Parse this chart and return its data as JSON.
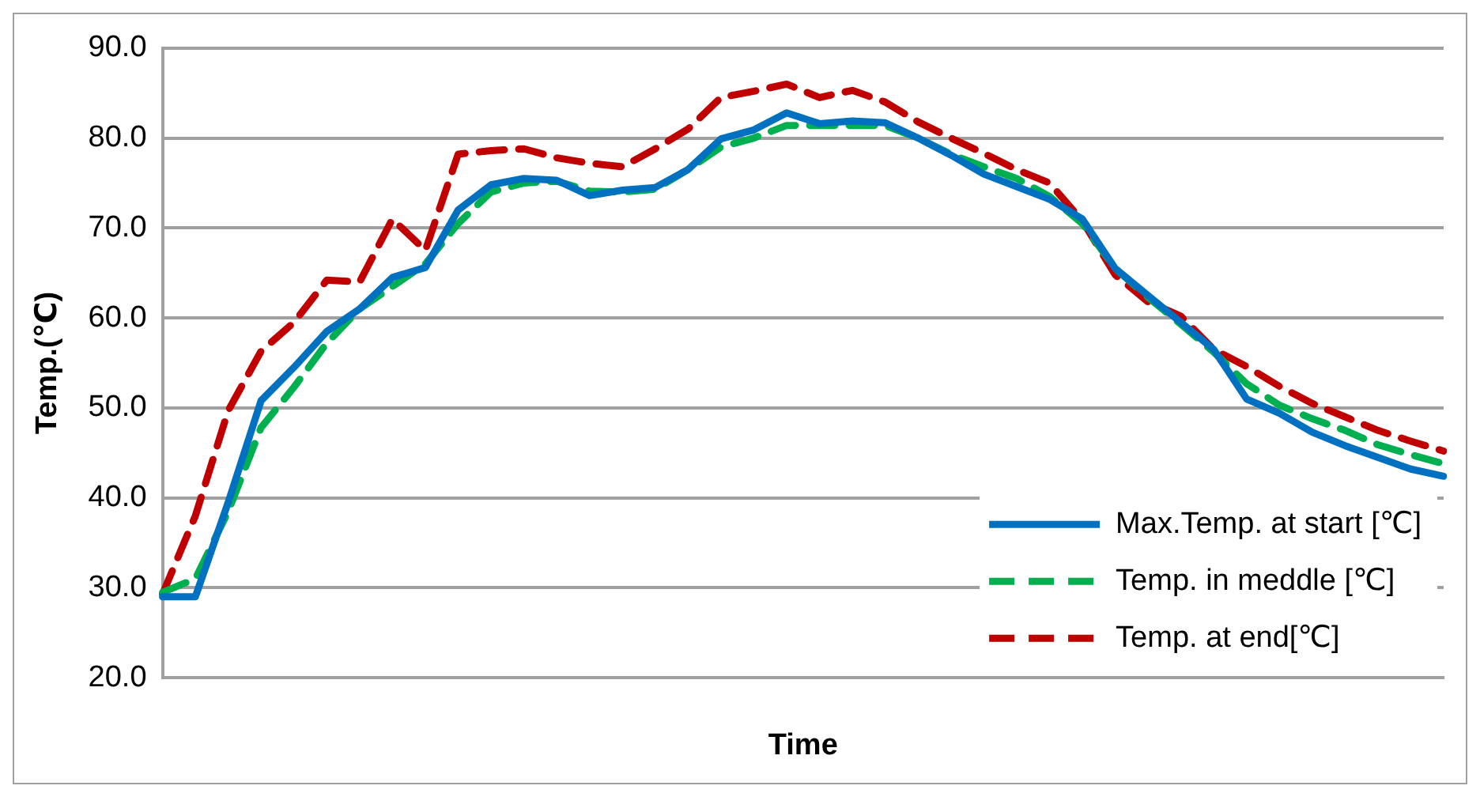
{
  "chart_data": {
    "type": "line",
    "xlabel": "Time",
    "ylabel": "Temp.(℃)",
    "categories": [
      null,
      null,
      null,
      null,
      null,
      null,
      null,
      null,
      null,
      null,
      null,
      null,
      null,
      null,
      null,
      null,
      null,
      null,
      null,
      null,
      null,
      null,
      null,
      null,
      null,
      null,
      null,
      null,
      null,
      null,
      null,
      null,
      null,
      null,
      null,
      null,
      null,
      null,
      null,
      null
    ],
    "series": [
      {
        "name": "Max.Temp. at start [℃]",
        "color": "#0070c0",
        "line_style": "solid",
        "values": [
          29.0,
          29.0,
          39.5,
          50.8,
          54.5,
          58.5,
          61.0,
          64.5,
          65.6,
          72.0,
          74.8,
          75.5,
          75.3,
          73.6,
          74.2,
          74.5,
          76.5,
          79.9,
          80.9,
          82.8,
          81.6,
          81.9,
          81.7,
          80.0,
          78.1,
          76.0,
          74.6,
          73.2,
          71.0,
          65.5,
          62.5,
          59.5,
          56.5,
          51.0,
          49.4,
          47.3,
          45.8,
          44.5,
          43.2,
          42.4
        ]
      },
      {
        "name": "Temp. in meddle [℃]",
        "color": "#00b050",
        "line_style": "dashed",
        "values": [
          29.5,
          31.0,
          38.5,
          47.8,
          52.3,
          57.2,
          61.0,
          63.5,
          66.0,
          70.5,
          74.0,
          75.0,
          75.2,
          74.1,
          74.0,
          74.3,
          76.5,
          79.0,
          80.0,
          81.4,
          81.4,
          81.4,
          81.4,
          80.0,
          78.2,
          76.8,
          75.5,
          73.5,
          70.5,
          65.5,
          62.3,
          59.3,
          56.2,
          52.7,
          50.3,
          48.8,
          47.5,
          45.9,
          44.8,
          43.8
        ]
      },
      {
        "name": "Temp. at end[℃]",
        "color": "#c00000",
        "line_style": "dashed",
        "values": [
          29.3,
          38.0,
          49.7,
          56.3,
          59.5,
          64.2,
          64.0,
          71.0,
          67.5,
          78.2,
          78.6,
          78.8,
          77.8,
          77.2,
          76.8,
          78.8,
          81.0,
          84.5,
          85.2,
          86.0,
          84.5,
          85.3,
          84.0,
          81.8,
          80.0,
          78.3,
          76.5,
          75.0,
          70.8,
          64.8,
          61.8,
          60.2,
          56.5,
          54.6,
          52.4,
          50.5,
          49.0,
          47.5,
          46.3,
          45.2
        ]
      }
    ],
    "ylim": [
      20,
      90
    ],
    "yticks": [
      {
        "value": 20,
        "label": "20.0"
      },
      {
        "value": 30,
        "label": "30.0"
      },
      {
        "value": 40,
        "label": "40.0"
      },
      {
        "value": 50,
        "label": "50.0"
      },
      {
        "value": 60,
        "label": "60.0"
      },
      {
        "value": 70,
        "label": "70.0"
      },
      {
        "value": 80,
        "label": "80.0"
      },
      {
        "value": 90,
        "label": "90.0"
      }
    ],
    "grid": "y",
    "legend": "bottom right",
    "marker": "none"
  }
}
